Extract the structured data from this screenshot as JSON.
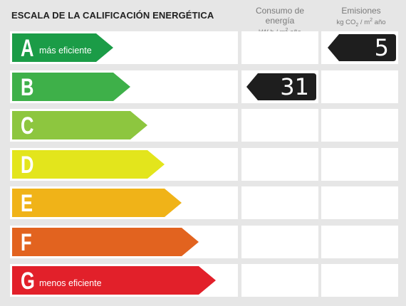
{
  "header": {
    "title": "ESCALA DE LA CALIFICACIÓN ENERGÉTICA",
    "consumo_label": "Consumo de energía",
    "consumo_unit_a": "kW h / m",
    "consumo_unit_b": " año",
    "emisiones_label": "Emisiones",
    "emisiones_unit_a": "kg CO",
    "emisiones_unit_b": " / m",
    "emisiones_unit_c": " año",
    "sup2": "2",
    "sub2": "2"
  },
  "ratings": [
    {
      "letter": "A",
      "desc": "más eficiente",
      "color": "#1b9c47"
    },
    {
      "letter": "B",
      "desc": "",
      "color": "#3eb049"
    },
    {
      "letter": "C",
      "desc": "",
      "color": "#8dc63f"
    },
    {
      "letter": "D",
      "desc": "",
      "color": "#e3e51c"
    },
    {
      "letter": "E",
      "desc": "",
      "color": "#f0b318"
    },
    {
      "letter": "F",
      "desc": "",
      "color": "#e2631f"
    },
    {
      "letter": "G",
      "desc": "menos eficiente",
      "color": "#e2202a"
    }
  ],
  "consumo_value": "31",
  "consumo_rating": "B",
  "emisiones_value": "5",
  "emisiones_rating": "A",
  "marker_color": "#1e1e1e"
}
